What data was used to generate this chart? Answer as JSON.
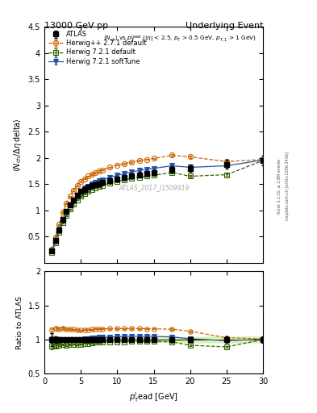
{
  "title_left": "13000 GeV pp",
  "title_right": "Underlying Event",
  "watermark": "ATLAS_2017_I1509919",
  "right_label_top": "Rivet 3.1.10, ≥ 2.8M events",
  "right_label_bot": "mcplots.cern.ch [arXiv:1306.3436]",
  "ylim_main": [
    0.0,
    4.5
  ],
  "ylim_ratio": [
    0.5,
    2.0
  ],
  "xlim": [
    0,
    30
  ],
  "atlas_x": [
    1.0,
    1.5,
    2.0,
    2.5,
    3.0,
    3.5,
    4.0,
    4.5,
    5.0,
    5.5,
    6.0,
    6.5,
    7.0,
    7.5,
    8.0,
    9.0,
    10.0,
    11.0,
    12.0,
    13.0,
    14.0,
    15.0,
    17.5,
    20.0,
    25.0,
    30.0
  ],
  "atlas_y": [
    0.22,
    0.42,
    0.63,
    0.82,
    0.98,
    1.1,
    1.2,
    1.29,
    1.36,
    1.4,
    1.44,
    1.47,
    1.49,
    1.51,
    1.53,
    1.57,
    1.6,
    1.63,
    1.65,
    1.68,
    1.7,
    1.72,
    1.78,
    1.8,
    1.88,
    1.95
  ],
  "atlas_yerr": [
    0.02,
    0.02,
    0.02,
    0.02,
    0.02,
    0.02,
    0.02,
    0.02,
    0.02,
    0.02,
    0.03,
    0.03,
    0.03,
    0.03,
    0.03,
    0.04,
    0.04,
    0.04,
    0.04,
    0.05,
    0.05,
    0.05,
    0.06,
    0.07,
    0.08,
    0.09
  ],
  "hpp_x": [
    1.0,
    1.5,
    2.0,
    2.5,
    3.0,
    3.5,
    4.0,
    4.5,
    5.0,
    5.5,
    6.0,
    6.5,
    7.0,
    7.5,
    8.0,
    9.0,
    10.0,
    11.0,
    12.0,
    13.0,
    14.0,
    15.0,
    17.5,
    20.0,
    25.0,
    30.0
  ],
  "hpp_y": [
    0.25,
    0.49,
    0.73,
    0.96,
    1.13,
    1.27,
    1.38,
    1.47,
    1.55,
    1.6,
    1.65,
    1.69,
    1.72,
    1.75,
    1.77,
    1.82,
    1.86,
    1.89,
    1.92,
    1.95,
    1.97,
    1.99,
    2.05,
    2.02,
    1.93,
    1.97
  ],
  "hpp_yerr": [
    0.01,
    0.01,
    0.01,
    0.01,
    0.01,
    0.01,
    0.01,
    0.01,
    0.01,
    0.01,
    0.01,
    0.01,
    0.01,
    0.01,
    0.01,
    0.01,
    0.01,
    0.01,
    0.01,
    0.01,
    0.01,
    0.01,
    0.02,
    0.02,
    0.02,
    0.03
  ],
  "h721_x": [
    1.0,
    1.5,
    2.0,
    2.5,
    3.0,
    3.5,
    4.0,
    4.5,
    5.0,
    5.5,
    6.0,
    6.5,
    7.0,
    7.5,
    8.0,
    9.0,
    10.0,
    11.0,
    12.0,
    13.0,
    14.0,
    15.0,
    17.5,
    20.0,
    25.0,
    30.0
  ],
  "h721_y": [
    0.2,
    0.38,
    0.58,
    0.76,
    0.9,
    1.02,
    1.12,
    1.2,
    1.27,
    1.32,
    1.36,
    1.4,
    1.43,
    1.45,
    1.48,
    1.52,
    1.55,
    1.58,
    1.61,
    1.63,
    1.65,
    1.67,
    1.72,
    1.65,
    1.68,
    1.95
  ],
  "h721_yerr": [
    0.01,
    0.01,
    0.01,
    0.01,
    0.01,
    0.01,
    0.01,
    0.01,
    0.01,
    0.01,
    0.01,
    0.01,
    0.01,
    0.01,
    0.01,
    0.01,
    0.01,
    0.01,
    0.01,
    0.01,
    0.01,
    0.01,
    0.02,
    0.02,
    0.02,
    0.03
  ],
  "h721s_x": [
    1.0,
    1.5,
    2.0,
    2.5,
    3.0,
    3.5,
    4.0,
    4.5,
    5.0,
    5.5,
    6.0,
    6.5,
    7.0,
    7.5,
    8.0,
    9.0,
    10.0,
    11.0,
    12.0,
    13.0,
    14.0,
    15.0,
    17.5,
    20.0,
    25.0,
    30.0
  ],
  "h721s_y": [
    0.22,
    0.42,
    0.63,
    0.82,
    0.97,
    1.1,
    1.2,
    1.29,
    1.36,
    1.42,
    1.46,
    1.5,
    1.53,
    1.56,
    1.58,
    1.63,
    1.67,
    1.7,
    1.73,
    1.76,
    1.78,
    1.8,
    1.85,
    1.82,
    1.85,
    1.96
  ],
  "h721s_yerr": [
    0.01,
    0.01,
    0.01,
    0.01,
    0.01,
    0.01,
    0.01,
    0.01,
    0.01,
    0.01,
    0.01,
    0.01,
    0.01,
    0.01,
    0.01,
    0.01,
    0.01,
    0.01,
    0.01,
    0.01,
    0.01,
    0.01,
    0.02,
    0.02,
    0.02,
    0.03
  ],
  "color_atlas": "#000000",
  "color_hpp": "#cc6600",
  "color_h721": "#336600",
  "color_h721s": "#2255aa",
  "band_color": "#ccee88",
  "band_alpha": 0.6
}
